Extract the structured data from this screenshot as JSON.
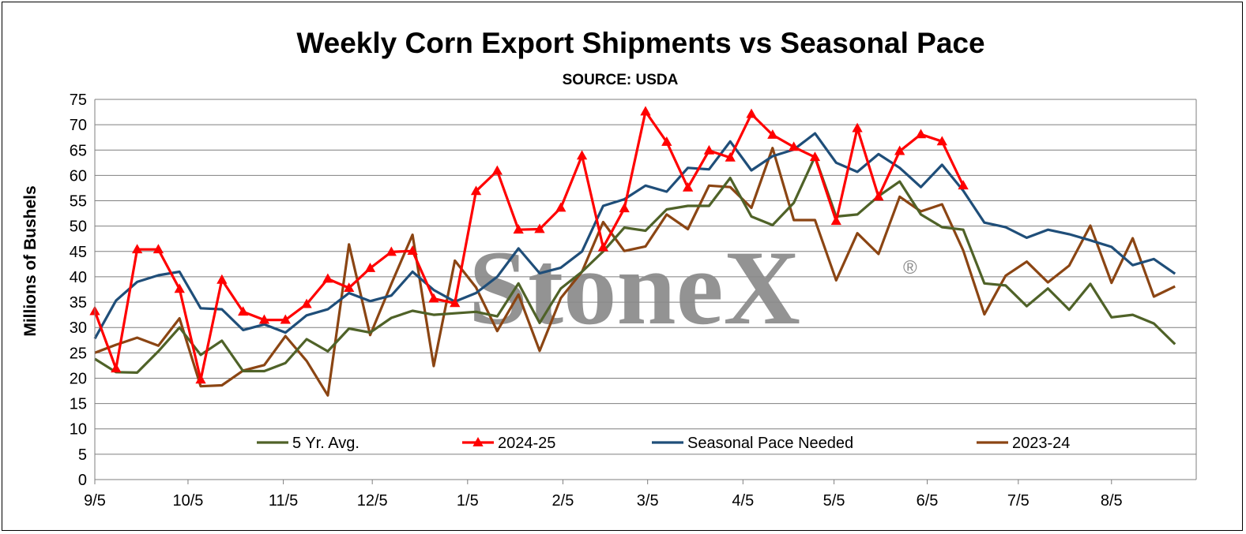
{
  "watermark": {
    "text": "StoneX",
    "registered": "®"
  },
  "chart_data": {
    "type": "line",
    "title": "Weekly Corn Export Shipments vs Seasonal Pace",
    "subtitle": "SOURCE: USDA",
    "ylabel": "Millions of Bushels",
    "xlabel": "",
    "ylim": [
      0,
      75
    ],
    "yticks": [
      0,
      5,
      10,
      15,
      20,
      25,
      30,
      35,
      40,
      45,
      50,
      55,
      60,
      65,
      70,
      75
    ],
    "xlim": [
      0,
      52
    ],
    "xticks": [
      {
        "label": "9/5",
        "week": 0
      },
      {
        "label": "10/5",
        "week": 4.4
      },
      {
        "label": "11/5",
        "week": 8.9
      },
      {
        "label": "12/5",
        "week": 13.1
      },
      {
        "label": "1/5",
        "week": 17.6
      },
      {
        "label": "2/5",
        "week": 22.1
      },
      {
        "label": "3/5",
        "week": 26.1
      },
      {
        "label": "4/5",
        "week": 30.6
      },
      {
        "label": "5/5",
        "week": 34.9
      },
      {
        "label": "6/5",
        "week": 39.3
      },
      {
        "label": "7/5",
        "week": 43.6
      },
      {
        "label": "8/5",
        "week": 48.0
      }
    ],
    "grid": "horizontal",
    "legend_position": "bottom-inside",
    "series": [
      {
        "name": "5 Yr. Avg.",
        "color": "#4f6228",
        "marker": "none",
        "values": [
          23.8,
          21.2,
          21.1,
          25.3,
          30.0,
          24.6,
          27.4,
          21.4,
          21.4,
          23.0,
          27.7,
          25.3,
          29.8,
          29.0,
          31.9,
          33.3,
          32.5,
          32.8,
          33.1,
          32.2,
          38.7,
          30.9,
          37.7,
          41.0,
          45.0,
          49.7,
          49.1,
          53.3,
          54.0,
          54.0,
          59.5,
          51.9,
          50.2,
          54.6,
          63.7,
          51.9,
          52.3,
          55.9,
          58.8,
          52.3,
          49.8,
          49.3,
          38.7,
          38.3,
          34.2,
          37.7,
          33.5,
          38.6,
          32.0,
          32.5,
          30.8,
          26.7
        ]
      },
      {
        "name": "2024-25",
        "color": "#ff0000",
        "marker": "triangle",
        "values": [
          33.2,
          21.9,
          45.4,
          45.4,
          37.6,
          19.7,
          39.4,
          33.1,
          31.5,
          31.5,
          34.6,
          39.6,
          37.8,
          41.7,
          44.9,
          45.1,
          35.7,
          34.8,
          56.9,
          60.9,
          49.3,
          49.4,
          53.6,
          63.9,
          45.8,
          53.5,
          72.6,
          66.6,
          57.6,
          64.9,
          63.5,
          72.1,
          68.0,
          65.6,
          63.6,
          51.0,
          69.3,
          55.8,
          64.8,
          68.1,
          66.7,
          58.0
        ]
      },
      {
        "name": "Seasonal Pace Needed",
        "color": "#1f4e79",
        "marker": "none",
        "values": [
          27.8,
          35.3,
          39.0,
          40.3,
          41.0,
          33.8,
          33.6,
          29.5,
          30.6,
          29.0,
          32.4,
          33.6,
          36.8,
          35.2,
          36.3,
          41.0,
          37.4,
          35.1,
          36.8,
          40.0,
          45.6,
          40.7,
          41.8,
          45.0,
          54.0,
          55.3,
          58.0,
          56.8,
          61.5,
          61.2,
          66.7,
          61.0,
          63.8,
          65.1,
          68.3,
          62.5,
          60.7,
          64.2,
          61.5,
          57.7,
          62.1,
          57.0,
          50.7,
          49.8,
          47.7,
          49.3,
          48.4,
          47.2,
          45.9,
          42.3,
          43.5,
          40.6
        ]
      },
      {
        "name": "2023-24",
        "color": "#8b4513",
        "marker": "none",
        "values": [
          25.0,
          26.6,
          28.0,
          26.4,
          31.8,
          18.4,
          18.6,
          21.5,
          22.6,
          28.3,
          23.4,
          16.6,
          46.4,
          28.5,
          38.6,
          48.3,
          22.4,
          43.2,
          37.9,
          29.3,
          36.5,
          25.4,
          35.8,
          41.0,
          50.8,
          45.1,
          46.0,
          52.3,
          49.4,
          58.0,
          57.7,
          53.6,
          65.4,
          51.2,
          51.2,
          39.3,
          48.6,
          44.5,
          55.8,
          52.9,
          54.3,
          45.2,
          32.6,
          40.2,
          43.0,
          38.9,
          42.2,
          50.1,
          38.8,
          47.6,
          36.1,
          38.1
        ]
      }
    ]
  }
}
